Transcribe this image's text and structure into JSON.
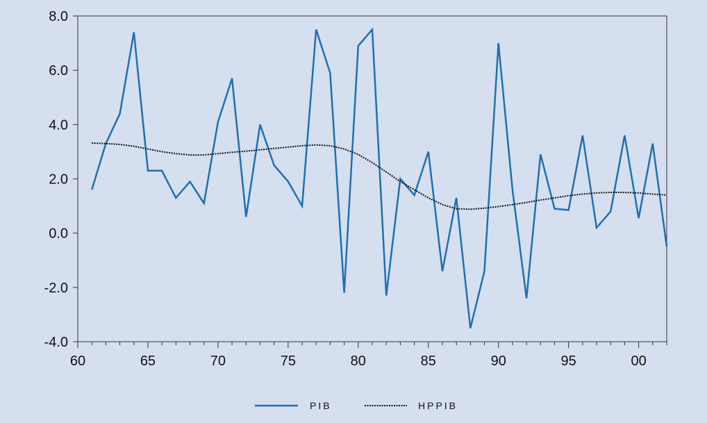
{
  "chart_data": {
    "type": "line",
    "x_start": 1961,
    "x_end": 2002,
    "xlim": [
      1960,
      2002
    ],
    "ylim": [
      -4.0,
      8.0
    ],
    "x_ticks": [
      {
        "value": 1960,
        "label": "60"
      },
      {
        "value": 1965,
        "label": "65"
      },
      {
        "value": 1970,
        "label": "70"
      },
      {
        "value": 1975,
        "label": "75"
      },
      {
        "value": 1980,
        "label": "80"
      },
      {
        "value": 1985,
        "label": "85"
      },
      {
        "value": 1990,
        "label": "90"
      },
      {
        "value": 1995,
        "label": "95"
      },
      {
        "value": 2000,
        "label": "00"
      }
    ],
    "y_ticks": [
      {
        "value": 8,
        "label": "8.0"
      },
      {
        "value": 6,
        "label": "6.0"
      },
      {
        "value": 4,
        "label": "4.0"
      },
      {
        "value": 2,
        "label": "2.0"
      },
      {
        "value": 0,
        "label": "0.0"
      },
      {
        "value": -2,
        "label": "-2.0"
      },
      {
        "value": -4,
        "label": "-4.0"
      }
    ],
    "grid": false,
    "legend_position": "bottom-center",
    "series": [
      {
        "name": "PIB",
        "color": "#1f6fb0",
        "style": "solid",
        "values": [
          1.6,
          3.3,
          4.4,
          7.4,
          2.3,
          2.3,
          1.3,
          1.9,
          1.1,
          4.1,
          5.7,
          0.6,
          4.0,
          2.5,
          1.9,
          1.0,
          7.5,
          5.9,
          -2.2,
          6.9,
          7.5,
          -2.3,
          2.0,
          1.4,
          3.0,
          -1.4,
          1.3,
          -3.5,
          -1.4,
          7.0,
          1.6,
          -2.4,
          2.9,
          0.9,
          0.85,
          3.6,
          0.2,
          0.8,
          3.6,
          0.55,
          3.3,
          -0.5
        ]
      },
      {
        "name": "HPPIB",
        "color": "#111111",
        "style": "dotted",
        "values": [
          3.32,
          3.3,
          3.27,
          3.2,
          3.1,
          3.0,
          2.93,
          2.88,
          2.88,
          2.93,
          2.98,
          3.02,
          3.07,
          3.12,
          3.17,
          3.22,
          3.25,
          3.22,
          3.1,
          2.9,
          2.6,
          2.25,
          1.9,
          1.6,
          1.3,
          1.05,
          0.9,
          0.88,
          0.92,
          0.98,
          1.05,
          1.13,
          1.22,
          1.3,
          1.38,
          1.44,
          1.48,
          1.5,
          1.5,
          1.48,
          1.44,
          1.4
        ]
      }
    ]
  }
}
